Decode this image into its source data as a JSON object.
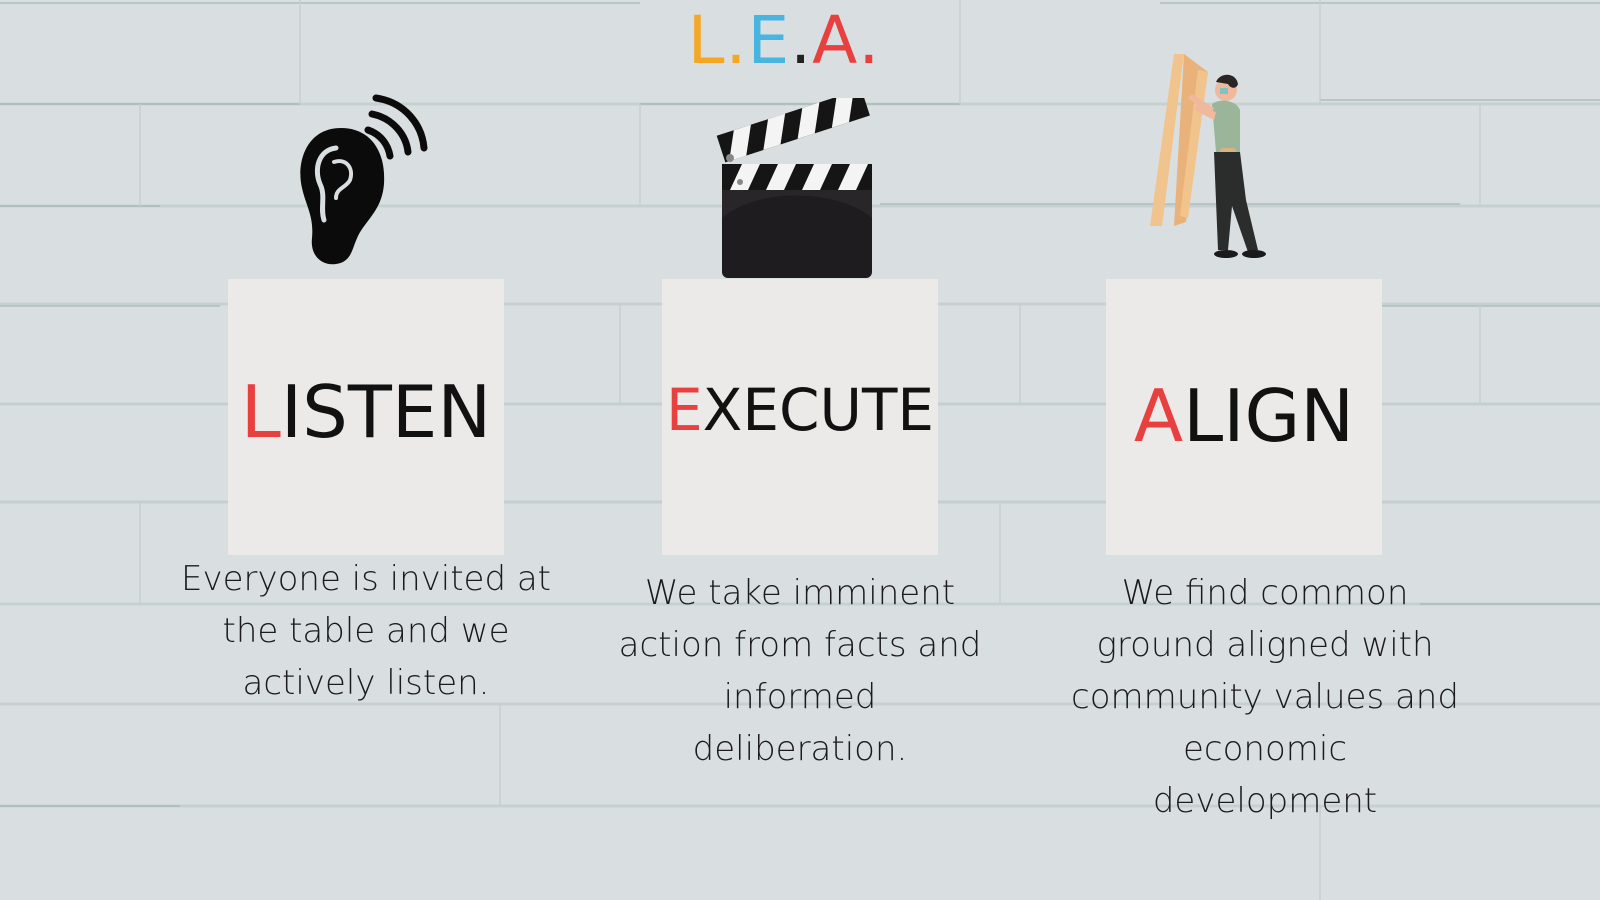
{
  "title": {
    "letters": [
      {
        "text": "L",
        "color": "#f5a623"
      },
      {
        "text": ".",
        "color": "#f5a623"
      },
      {
        "text": "E",
        "color": "#47b5e0"
      },
      {
        "text": ".",
        "color": "#222222"
      },
      {
        "text": "A",
        "color": "#e8403f"
      },
      {
        "text": ".",
        "color": "#e8403f"
      }
    ]
  },
  "pillars": [
    {
      "icon": "ear-icon",
      "first_letter": "L",
      "rest": "ISTEN",
      "description": [
        "Everyone is invited at",
        "the table and we",
        "actively listen."
      ]
    },
    {
      "icon": "clapperboard-icon",
      "first_letter": "E",
      "rest": "XECUTE",
      "description": [
        "We take imminent",
        "action from facts and",
        "informed",
        "deliberation."
      ]
    },
    {
      "icon": "person-carrying-frame-icon",
      "first_letter": "A",
      "rest": "LIGN",
      "description": [
        "We find common",
        "ground aligned with",
        "community values and",
        "economic",
        "development"
      ]
    }
  ],
  "colors": {
    "background": "#d9dfe0",
    "card": "#ece9e9",
    "accent_red": "#e8403f",
    "accent_orange": "#f5a623",
    "accent_blue": "#47b5e0"
  }
}
